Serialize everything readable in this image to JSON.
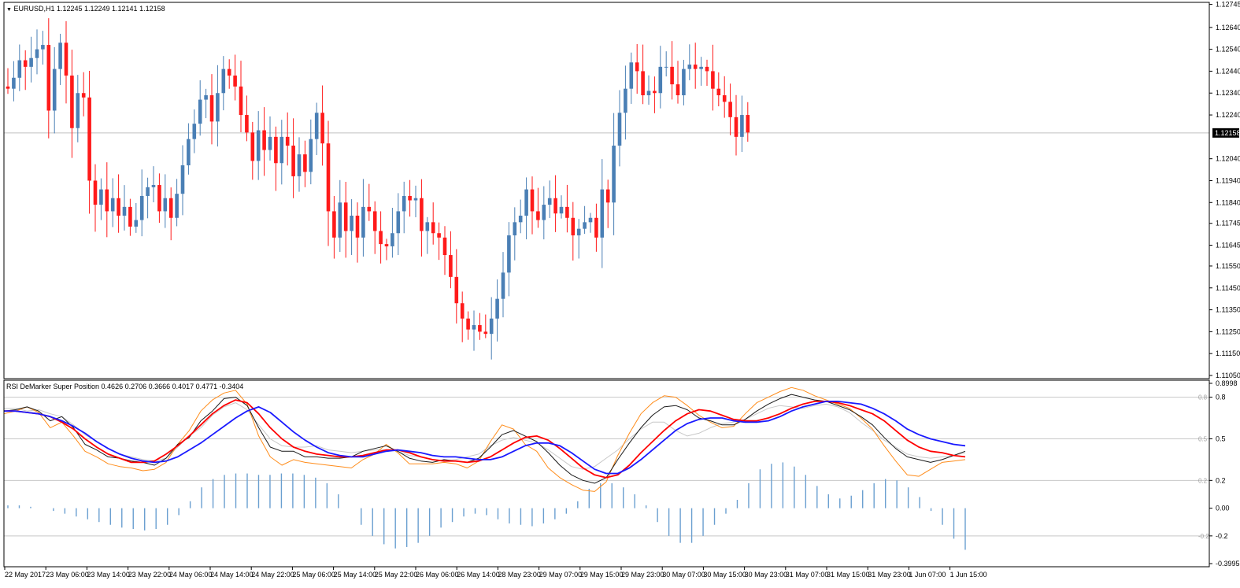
{
  "main_panel": {
    "symbol_header": "EURUSD,H1  1.12245 1.12249 1.12141 1.12158",
    "current_price_label": "1.12158"
  },
  "indicator_panel": {
    "header": "RSI DeMarker Super Position 0.4626 0.2706 0.3666 0.4017 0.4771 -0.3404"
  },
  "colors": {
    "bull": "#4a7fb5",
    "bear": "#ff1a1a",
    "line_red": "#ff0000",
    "line_blue": "#1a1aff",
    "line_black": "#1a1a1a",
    "line_orange": "#ff8c1a",
    "line_gray": "#c8c8c8",
    "hist": "#6a9fd0"
  },
  "chart_data": [
    {
      "type": "candlestick",
      "symbol": "EURUSD",
      "timeframe": "H1",
      "ohlc_header": {
        "open": 1.12245,
        "high": 1.12249,
        "low": 1.12141,
        "close": 1.12158
      },
      "ylim": [
        1.1105,
        1.1274
      ],
      "y_ticks": [
        "1.12745",
        "1.12640",
        "1.12540",
        "1.12440",
        "1.12340",
        "1.12240",
        "1.12040",
        "1.11940",
        "1.11840",
        "1.11745",
        "1.11645",
        "1.11550",
        "1.11450",
        "1.11350",
        "1.11250",
        "1.11150",
        "1.11050"
      ],
      "current_price": 1.12158,
      "x_ticks": [
        "22 May 2017",
        "23 May 06:00",
        "23 May 14:00",
        "23 May 22:00",
        "24 May 06:00",
        "24 May 14:00",
        "24 May 22:00",
        "25 May 06:00",
        "25 May 14:00",
        "25 May 22:00",
        "26 May 06:00",
        "26 May 14:00",
        "28 May 23:00",
        "29 May 07:00",
        "29 May 15:00",
        "29 May 23:00",
        "30 May 07:00",
        "30 May 15:00",
        "30 May 23:00",
        "31 May 07:00",
        "31 May 15:00",
        "31 May 23:00",
        "1 Jun 07:00",
        "1 Jun 15:00"
      ],
      "close_path": [
        1.1237,
        1.1236,
        1.1241,
        1.1249,
        1.1246,
        1.125,
        1.1254,
        1.1256,
        1.1226,
        1.1245,
        1.1257,
        1.1242,
        1.1218,
        1.1234,
        1.1232,
        1.1194,
        1.1183,
        1.119,
        1.118,
        1.1186,
        1.1178,
        1.1182,
        1.1173,
        1.1176,
        1.1187,
        1.1191,
        1.1192,
        1.118,
        1.1186,
        1.1177,
        1.1188,
        1.1201,
        1.1213,
        1.122,
        1.1231,
        1.1233,
        1.1221,
        1.1234,
        1.1245,
        1.1242,
        1.1237,
        1.1224,
        1.1216,
        1.1203,
        1.1217,
        1.1208,
        1.1214,
        1.1202,
        1.1214,
        1.121,
        1.1196,
        1.1206,
        1.1198,
        1.1213,
        1.1225,
        1.1211,
        1.118,
        1.1168,
        1.1184,
        1.1171,
        1.1178,
        1.1168,
        1.1182,
        1.118,
        1.1171,
        1.1165,
        1.1164,
        1.117,
        1.118,
        1.1187,
        1.1185,
        1.1186,
        1.1171,
        1.1175,
        1.117,
        1.1168,
        1.116,
        1.115,
        1.1138,
        1.1131,
        1.1126,
        1.1128,
        1.1125,
        1.1124,
        1.1131,
        1.114,
        1.1152,
        1.1169,
        1.1175,
        1.1178,
        1.119,
        1.118,
        1.1176,
        1.1183,
        1.1186,
        1.1179,
        1.1182,
        1.1177,
        1.1169,
        1.1172,
        1.1175,
        1.1177,
        1.1168,
        1.119,
        1.1184,
        1.121,
        1.1225,
        1.1236,
        1.1248,
        1.1244,
        1.1233,
        1.1235,
        1.1234,
        1.1246,
        1.1246,
        1.1238,
        1.1233,
        1.1245,
        1.1247,
        1.1245,
        1.1246,
        1.1244,
        1.1236,
        1.1233,
        1.123,
        1.1223,
        1.1214,
        1.1224,
        1.1216
      ]
    },
    {
      "type": "line",
      "title": "RSI DeMarker Super Position",
      "header_values": [
        0.4626,
        0.2706,
        0.3666,
        0.4017,
        0.4771,
        -0.3404
      ],
      "ylim": [
        -0.3995,
        0.8998
      ],
      "y_ticks": [
        "0.8998",
        "0.8",
        "0.5",
        "0.2",
        "0.00",
        "-0.2",
        "-0.3995"
      ],
      "levels": [
        0.8,
        0.5,
        0.2,
        -0.2
      ],
      "series": [
        {
          "color": "#ff0000",
          "values": [
            0.7,
            0.7,
            0.69,
            0.68,
            0.66,
            0.62,
            0.57,
            0.5,
            0.44,
            0.39,
            0.36,
            0.33,
            0.33,
            0.34,
            0.39,
            0.45,
            0.52,
            0.6,
            0.68,
            0.74,
            0.78,
            0.76,
            0.68,
            0.58,
            0.5,
            0.44,
            0.41,
            0.39,
            0.38,
            0.37,
            0.37,
            0.38,
            0.4,
            0.42,
            0.42,
            0.4,
            0.37,
            0.35,
            0.34,
            0.34,
            0.33,
            0.34,
            0.37,
            0.42,
            0.47,
            0.51,
            0.52,
            0.49,
            0.43,
            0.36,
            0.29,
            0.24,
            0.22,
            0.24,
            0.31,
            0.4,
            0.48,
            0.56,
            0.63,
            0.68,
            0.71,
            0.7,
            0.67,
            0.64,
            0.63,
            0.63,
            0.65,
            0.68,
            0.72,
            0.75,
            0.77,
            0.77,
            0.76,
            0.74,
            0.71,
            0.68,
            0.63,
            0.56,
            0.49,
            0.44,
            0.41,
            0.4,
            0.38,
            0.37
          ]
        },
        {
          "color": "#1a1aff",
          "values": [
            0.7,
            0.7,
            0.69,
            0.68,
            0.66,
            0.63,
            0.59,
            0.54,
            0.48,
            0.43,
            0.39,
            0.36,
            0.34,
            0.33,
            0.34,
            0.37,
            0.42,
            0.47,
            0.53,
            0.59,
            0.65,
            0.7,
            0.73,
            0.69,
            0.62,
            0.55,
            0.49,
            0.44,
            0.4,
            0.38,
            0.37,
            0.37,
            0.39,
            0.41,
            0.42,
            0.41,
            0.4,
            0.38,
            0.37,
            0.37,
            0.36,
            0.35,
            0.35,
            0.37,
            0.41,
            0.45,
            0.47,
            0.47,
            0.45,
            0.4,
            0.34,
            0.28,
            0.25,
            0.25,
            0.29,
            0.35,
            0.42,
            0.49,
            0.56,
            0.61,
            0.64,
            0.65,
            0.65,
            0.63,
            0.62,
            0.62,
            0.63,
            0.66,
            0.7,
            0.73,
            0.75,
            0.77,
            0.77,
            0.76,
            0.75,
            0.72,
            0.68,
            0.63,
            0.57,
            0.53,
            0.5,
            0.48,
            0.46,
            0.45
          ]
        },
        {
          "color": "#1a1a1a",
          "values": [
            0.7,
            0.71,
            0.73,
            0.7,
            0.63,
            0.66,
            0.58,
            0.46,
            0.42,
            0.37,
            0.36,
            0.34,
            0.33,
            0.31,
            0.36,
            0.46,
            0.51,
            0.63,
            0.7,
            0.79,
            0.8,
            0.74,
            0.58,
            0.44,
            0.41,
            0.41,
            0.37,
            0.37,
            0.36,
            0.36,
            0.37,
            0.41,
            0.43,
            0.45,
            0.41,
            0.36,
            0.34,
            0.33,
            0.35,
            0.34,
            0.33,
            0.36,
            0.44,
            0.53,
            0.56,
            0.52,
            0.48,
            0.4,
            0.31,
            0.24,
            0.2,
            0.18,
            0.22,
            0.35,
            0.47,
            0.58,
            0.67,
            0.73,
            0.74,
            0.71,
            0.65,
            0.63,
            0.6,
            0.6,
            0.64,
            0.7,
            0.75,
            0.79,
            0.82,
            0.8,
            0.78,
            0.77,
            0.74,
            0.71,
            0.66,
            0.6,
            0.51,
            0.43,
            0.37,
            0.35,
            0.33,
            0.35,
            0.38,
            0.41
          ]
        },
        {
          "color": "#ff8c1a",
          "values": [
            0.68,
            0.7,
            0.73,
            0.69,
            0.58,
            0.62,
            0.52,
            0.41,
            0.37,
            0.32,
            0.3,
            0.29,
            0.27,
            0.28,
            0.33,
            0.46,
            0.56,
            0.7,
            0.78,
            0.83,
            0.85,
            0.75,
            0.52,
            0.37,
            0.31,
            0.35,
            0.33,
            0.32,
            0.31,
            0.3,
            0.29,
            0.35,
            0.39,
            0.46,
            0.4,
            0.32,
            0.32,
            0.32,
            0.33,
            0.32,
            0.29,
            0.34,
            0.48,
            0.6,
            0.57,
            0.46,
            0.41,
            0.29,
            0.22,
            0.17,
            0.13,
            0.12,
            0.19,
            0.38,
            0.54,
            0.68,
            0.76,
            0.81,
            0.8,
            0.74,
            0.67,
            0.62,
            0.58,
            0.59,
            0.68,
            0.76,
            0.8,
            0.84,
            0.87,
            0.85,
            0.81,
            0.78,
            0.75,
            0.72,
            0.65,
            0.57,
            0.45,
            0.34,
            0.24,
            0.23,
            0.28,
            0.33,
            0.34,
            0.35
          ]
        },
        {
          "color": "#c8c8c8",
          "values": [
            0.72,
            0.72,
            0.7,
            0.71,
            0.68,
            0.66,
            0.6,
            0.53,
            0.48,
            0.43,
            0.39,
            0.37,
            0.35,
            0.34,
            0.36,
            0.44,
            0.52,
            0.58,
            0.67,
            0.73,
            0.76,
            0.71,
            0.6,
            0.5,
            0.45,
            0.44,
            0.44,
            0.45,
            0.42,
            0.41,
            0.4,
            0.41,
            0.42,
            0.42,
            0.41,
            0.38,
            0.37,
            0.35,
            0.34,
            0.35,
            0.37,
            0.39,
            0.45,
            0.49,
            0.51,
            0.49,
            0.47,
            0.42,
            0.36,
            0.3,
            0.28,
            0.3,
            0.36,
            0.42,
            0.5,
            0.57,
            0.62,
            0.62,
            0.56,
            0.52,
            0.54,
            0.58,
            0.61,
            0.62,
            0.64,
            0.68,
            0.72,
            0.74,
            0.73,
            0.72,
            0.74,
            0.75,
            0.73,
            0.69,
            0.62,
            0.56,
            0.49,
            0.44,
            0.39,
            0.37,
            0.36,
            0.37,
            0.38,
            0.4
          ]
        }
      ],
      "histogram": {
        "color": "#6a9fd0",
        "values": [
          0.02,
          0.02,
          0.01,
          0.0,
          -0.02,
          -0.04,
          -0.06,
          -0.08,
          -0.1,
          -0.12,
          -0.14,
          -0.15,
          -0.16,
          -0.15,
          -0.12,
          -0.05,
          0.05,
          0.15,
          0.21,
          0.24,
          0.25,
          0.25,
          0.24,
          0.24,
          0.25,
          0.25,
          0.24,
          0.22,
          0.18,
          0.1,
          0.0,
          -0.12,
          -0.2,
          -0.26,
          -0.29,
          -0.28,
          -0.25,
          -0.2,
          -0.14,
          -0.1,
          -0.06,
          -0.04,
          -0.05,
          -0.08,
          -0.11,
          -0.12,
          -0.13,
          -0.11,
          -0.08,
          -0.04,
          0.05,
          0.14,
          0.18,
          0.18,
          0.15,
          0.1,
          0.02,
          -0.1,
          -0.2,
          -0.25,
          -0.25,
          -0.2,
          -0.12,
          -0.04,
          0.06,
          0.18,
          0.28,
          0.32,
          0.33,
          0.3,
          0.24,
          0.16,
          0.1,
          0.07,
          0.09,
          0.13,
          0.18,
          0.21,
          0.2,
          0.15,
          0.08,
          -0.02,
          -0.12,
          -0.22,
          -0.3
        ]
      }
    }
  ]
}
